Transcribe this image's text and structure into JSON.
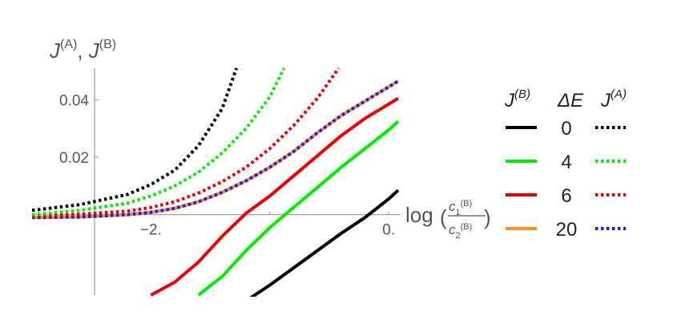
{
  "chart_data": {
    "type": "line",
    "ylabel": "J(A), J(B)",
    "ylabel_parts": {
      "j1": "J",
      "sup1": "(A)",
      "sep": ", ",
      "j2": "J",
      "sup2": "(B)"
    },
    "xlabel_parts": {
      "log": "log",
      "num_c": "c",
      "num_sub": "1",
      "num_sup": "(B)",
      "den_c": "c",
      "den_sub": "2",
      "den_sup": "(B)"
    },
    "xlim": [
      -3.0,
      0.1
    ],
    "ylim": [
      -0.028,
      0.051
    ],
    "x_ticks": [
      {
        "value": -2.0,
        "label": "−2."
      },
      {
        "value": -1.0,
        "label": ""
      },
      {
        "value": 0.0,
        "label": "0."
      }
    ],
    "y_ticks": [
      {
        "value": 0.02,
        "label": "0.02"
      },
      {
        "value": 0.04,
        "label": "0.04"
      }
    ],
    "grid": false,
    "legend_placement": "right",
    "legend": {
      "header_jb": "J",
      "header_jb_sup": "(B)",
      "header_de": "ΔE",
      "header_ja": "J",
      "header_ja_sup": "(A)",
      "rows": [
        {
          "value": "0",
          "solid_color": "#000000",
          "dotted_color": "#000000"
        },
        {
          "value": "4",
          "solid_color": "#00ee00",
          "dotted_color": "#00ee00"
        },
        {
          "value": "6",
          "solid_color": "#ee0000",
          "dotted_color": "#ee0000"
        },
        {
          "value": "20",
          "solid_color": "#ff8c1a",
          "dotted_color": "#1a1aff"
        }
      ]
    },
    "series": [
      {
        "style": "solid",
        "color": "#000000",
        "x": [
          -1.2,
          -1.0,
          -0.8,
          -0.6,
          -0.4,
          -0.2,
          0.0,
          0.08
        ],
        "y": [
          -0.03,
          -0.0245,
          -0.0185,
          -0.0125,
          -0.0065,
          -0.001,
          0.0055,
          0.0085
        ]
      },
      {
        "style": "solid",
        "color": "#00ee00",
        "x": [
          -1.6,
          -1.4,
          -1.2,
          -1.0,
          -0.8,
          -0.6,
          -0.4,
          -0.2,
          0.0,
          0.08
        ],
        "y": [
          -0.028,
          -0.0215,
          -0.0125,
          -0.0045,
          0.0025,
          0.0095,
          0.0165,
          0.023,
          0.0295,
          0.0325
        ]
      },
      {
        "style": "solid",
        "color": "#ee0000",
        "x": [
          -2.0,
          -1.8,
          -1.6,
          -1.4,
          -1.2,
          -1.0,
          -0.8,
          -0.6,
          -0.4,
          -0.2,
          0.0,
          0.08
        ],
        "y": [
          -0.028,
          -0.0235,
          -0.0165,
          -0.0075,
          0.0005,
          0.0065,
          0.0135,
          0.0205,
          0.0275,
          0.0335,
          0.0385,
          0.0405
        ]
      },
      {
        "style": "solid",
        "color": "#ff8c1a",
        "x": [
          -3.0,
          -2.6,
          -2.2,
          -2.0,
          -1.8,
          -1.6,
          -1.4,
          -1.2,
          -1.0,
          -0.8,
          -0.6,
          -0.4,
          -0.2,
          0.0,
          0.08
        ],
        "y": [
          -0.001,
          -0.0008,
          0.0,
          0.0008,
          0.0022,
          0.0045,
          0.0078,
          0.0118,
          0.0165,
          0.022,
          0.0285,
          0.0345,
          0.0395,
          0.0445,
          0.0465
        ]
      },
      {
        "style": "dotted",
        "color": "#1a1aff",
        "x": [
          -3.0,
          -2.6,
          -2.2,
          -2.0,
          -1.8,
          -1.6,
          -1.4,
          -1.2,
          -1.0,
          -0.8,
          -0.6,
          -0.4,
          -0.2,
          0.0,
          0.08
        ],
        "y": [
          -0.001,
          -0.0008,
          0.0,
          0.0008,
          0.0022,
          0.0045,
          0.0078,
          0.0118,
          0.0165,
          0.022,
          0.0285,
          0.0345,
          0.0395,
          0.0445,
          0.0465
        ]
      },
      {
        "style": "dotted",
        "color": "#ee0000",
        "x": [
          -3.0,
          -2.6,
          -2.2,
          -2.0,
          -1.8,
          -1.6,
          -1.4,
          -1.2,
          -1.0,
          -0.8,
          -0.6,
          -0.42
        ],
        "y": [
          -0.0005,
          0.0002,
          0.0012,
          0.0025,
          0.0045,
          0.0075,
          0.0115,
          0.0165,
          0.023,
          0.031,
          0.0405,
          0.051
        ]
      },
      {
        "style": "dotted",
        "color": "#00ee00",
        "x": [
          -3.0,
          -2.6,
          -2.2,
          -2.0,
          -1.8,
          -1.6,
          -1.4,
          -1.2,
          -1.0,
          -0.88
        ],
        "y": [
          0.0,
          0.0015,
          0.004,
          0.0065,
          0.01,
          0.0148,
          0.0215,
          0.03,
          0.041,
          0.051
        ]
      },
      {
        "style": "dotted",
        "color": "#000000",
        "x": [
          -3.0,
          -2.6,
          -2.2,
          -2.0,
          -1.8,
          -1.6,
          -1.4,
          -1.28
        ],
        "y": [
          0.0015,
          0.0035,
          0.007,
          0.0105,
          0.0155,
          0.024,
          0.037,
          0.051
        ]
      }
    ]
  }
}
